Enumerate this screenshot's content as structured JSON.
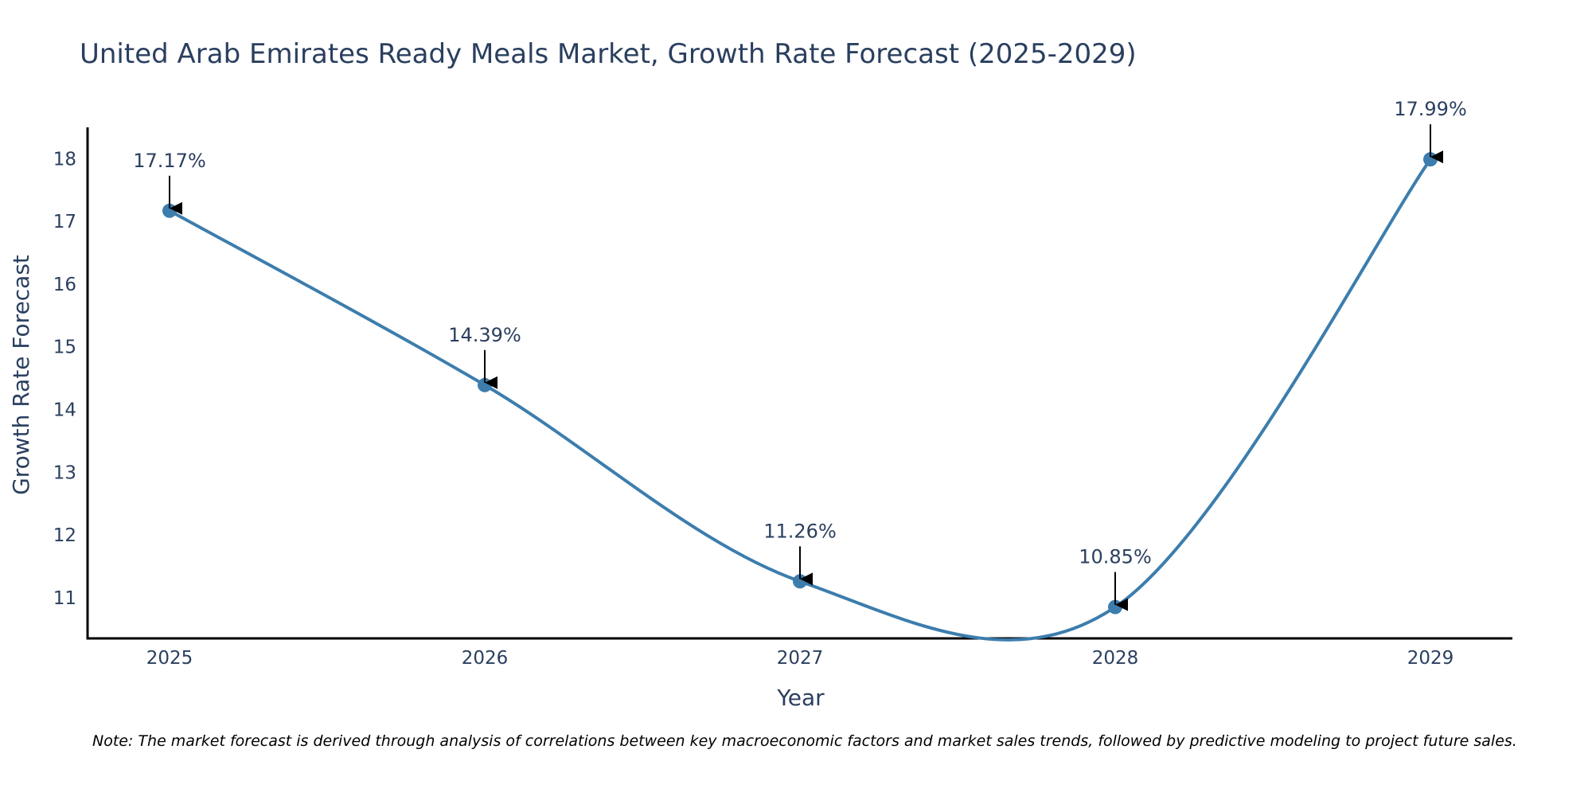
{
  "chart_data": {
    "type": "line",
    "title": "United Arab Emirates Ready Meals Market, Growth Rate Forecast (2025-2029)",
    "xlabel": "Year",
    "ylabel": "Growth Rate Forecast",
    "categories": [
      "2025",
      "2026",
      "2027",
      "2028",
      "2029"
    ],
    "values": [
      17.17,
      14.39,
      11.26,
      10.85,
      17.99
    ],
    "data_labels": [
      "17.17%",
      "14.39%",
      "11.26%",
      "10.85%",
      "17.99%"
    ],
    "yticks": [
      "11",
      "12",
      "13",
      "14",
      "15",
      "16",
      "17",
      "18"
    ],
    "ylim": [
      10.35,
      18.5
    ],
    "grid": false,
    "line_shape": "spline",
    "colors": {
      "line": "#3c7dad",
      "marker": "#3c7dad",
      "text": "#2a3f5f",
      "axis": "#000000",
      "arrow": "#000000"
    },
    "note": "Note: The market forecast is derived through analysis of correlations between key macroeconomic factors and market sales trends, followed by predictive modeling to project future sales."
  }
}
